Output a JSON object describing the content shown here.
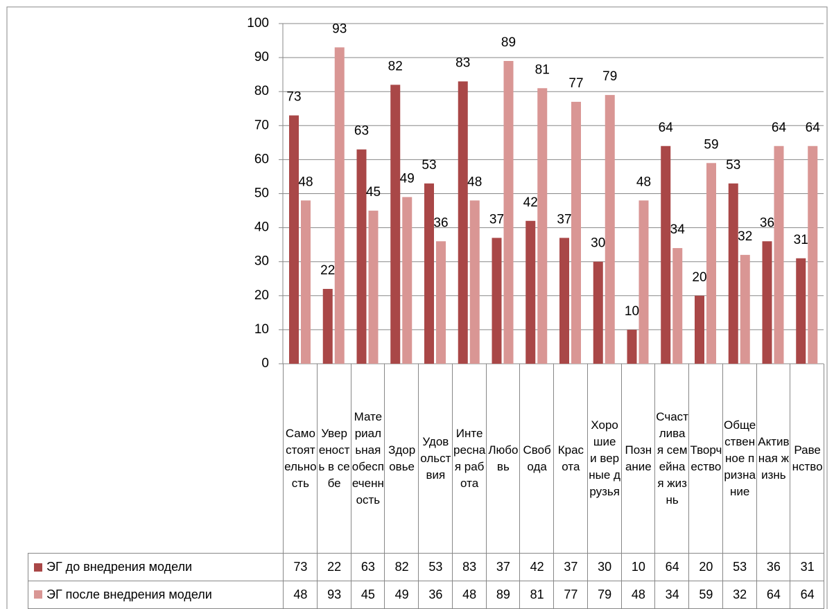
{
  "chart_data": {
    "type": "bar",
    "categories": [
      "Самостоятельность",
      "Увереность в себе",
      "Материальная обеспеченность",
      "Здоровье",
      "Удовольствия",
      "Интересная работа",
      "Любовь",
      "Свобода",
      "Красота",
      "Хорошие и верные друзья",
      "Познание",
      "Счастливая семейная жизнь",
      "Творчество",
      "Общественное признание",
      "Активная жизнь",
      "Равенство"
    ],
    "series": [
      {
        "name": "ЭГ до внедрения модели",
        "color": "#a94747",
        "values": [
          73,
          22,
          63,
          82,
          53,
          83,
          37,
          42,
          37,
          30,
          10,
          64,
          20,
          53,
          36,
          31
        ]
      },
      {
        "name": "ЭГ после  внедрения модели",
        "color": "#d99694",
        "values": [
          48,
          93,
          45,
          49,
          36,
          48,
          89,
          81,
          77,
          79,
          48,
          34,
          59,
          32,
          64,
          64
        ]
      }
    ],
    "ylim": [
      0,
      100
    ],
    "yticks": [
      0,
      10,
      20,
      30,
      40,
      50,
      60,
      70,
      80,
      90,
      100
    ],
    "grid": true
  }
}
